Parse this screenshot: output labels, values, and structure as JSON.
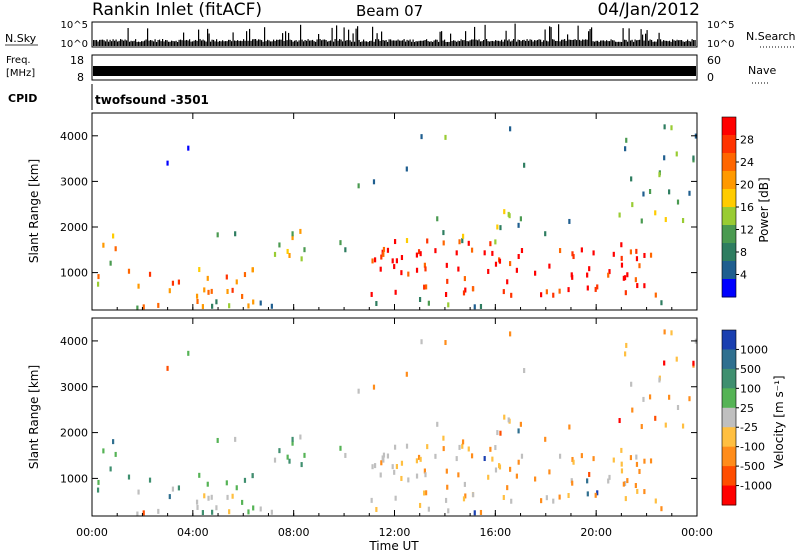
{
  "header": {
    "title": "Rankin Inlet (fitACF)",
    "beam": "Beam 07",
    "date": "04/Jan/2012"
  },
  "panels": {
    "nsky": {
      "label": "N.Sky",
      "right_label": "N.Search",
      "left_ticks": [
        "10^5",
        "10^0"
      ],
      "right_ticks": [
        "10^5",
        "10^0"
      ]
    },
    "freq": {
      "label_line1": "Freq.",
      "label_line2": "[MHz]",
      "right_label": "Nave",
      "left_ticks": [
        "18",
        "8"
      ],
      "right_ticks": [
        "60",
        "0"
      ]
    },
    "cpid": {
      "label": "CPID",
      "program": "twofsound -3501"
    }
  },
  "chart_data": [
    {
      "type": "heatmap",
      "name": "power",
      "ylabel": "Slant Range [km]",
      "ylim": [
        180,
        4500
      ],
      "yticks": [
        1000,
        2000,
        3000,
        4000
      ],
      "xlim": [
        0,
        24
      ],
      "colorbar": {
        "label": "Power [dB]",
        "ticks": [
          "28",
          "24",
          "20",
          "16",
          "12",
          "8",
          "4"
        ],
        "colors": [
          "#ff0000",
          "#ff3300",
          "#ff6600",
          "#ff9900",
          "#ffcc00",
          "#99cc33",
          "#4a9a50",
          "#2e7d60",
          "#1f5e8f",
          "#0000ff"
        ]
      }
    },
    {
      "type": "heatmap",
      "name": "velocity",
      "ylabel": "Slant Range [km]",
      "ylim": [
        180,
        4500
      ],
      "yticks": [
        1000,
        2000,
        3000,
        4000
      ],
      "xlim": [
        0,
        24
      ],
      "xlabel": "Time UT",
      "xticks": [
        "00:00",
        "04:00",
        "08:00",
        "12:00",
        "16:00",
        "20:00",
        "00:00"
      ],
      "colorbar": {
        "label": "Velocity [m s⁻¹]",
        "ticks": [
          "1000",
          "500",
          "100",
          "25",
          "-25",
          "-100",
          "-500",
          "-1000"
        ],
        "colors": [
          "#1a3fb0",
          "#2f6f8f",
          "#3f8f6f",
          "#55b355",
          "#bfbfbf",
          "#ffbf40",
          "#ff8c1a",
          "#ff4d00",
          "#ff0000"
        ]
      }
    }
  ]
}
